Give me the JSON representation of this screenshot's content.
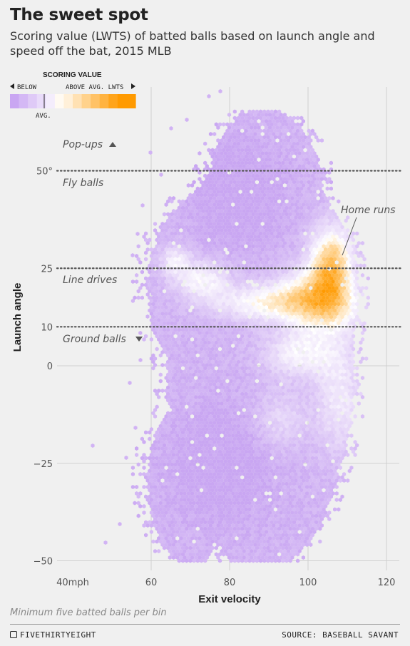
{
  "header": {
    "title": "The sweet spot",
    "subtitle": "Scoring value (LWTS) of batted balls based on launch angle and speed off the bat, 2015 MLB"
  },
  "legend": {
    "title": "SCORING VALUE",
    "below_label": "BELOW",
    "above_label": "ABOVE AVG. LWTS",
    "avg_label": "AVG.",
    "colors": {
      "below_far": "#c9a6f2",
      "average": "#ffffff",
      "above_far": "#ff9a00"
    }
  },
  "chart_data": {
    "type": "heatmap",
    "xlabel": "Exit velocity",
    "ylabel": "Launch angle",
    "xlim": [
      35,
      125
    ],
    "ylim": [
      -52,
      62
    ],
    "x_ticks": [
      {
        "value": 40,
        "label": "40mph"
      },
      {
        "value": 60,
        "label": "60"
      },
      {
        "value": 80,
        "label": "80"
      },
      {
        "value": 100,
        "label": "100"
      },
      {
        "value": 120,
        "label": "120"
      }
    ],
    "y_ticks": [
      {
        "value": 50,
        "label": "50°"
      },
      {
        "value": 25,
        "label": "25"
      },
      {
        "value": 10,
        "label": "10"
      },
      {
        "value": 0,
        "label": "0"
      },
      {
        "value": -25,
        "label": "−25"
      },
      {
        "value": -50,
        "label": "−50"
      }
    ],
    "reference_lines": [
      50,
      25,
      10
    ],
    "zone_labels": [
      {
        "text": "Pop-ups",
        "arrow": "up"
      },
      {
        "text": "Fly balls",
        "arrow": ""
      },
      {
        "text": "Line drives",
        "arrow": ""
      },
      {
        "text": "Ground balls",
        "arrow": "down"
      }
    ],
    "annotation": {
      "text": "Home runs",
      "x": 106,
      "y": 28
    },
    "regions": [
      {
        "name": "ground-balls-below",
        "x_range": [
          60,
          112
        ],
        "y_range": [
          -50,
          0
        ],
        "value": "below"
      },
      {
        "name": "fly-balls-below",
        "x_range": [
          70,
          100
        ],
        "y_range": [
          25,
          70
        ],
        "value": "below"
      },
      {
        "name": "line-drive-band",
        "x_range": [
          65,
          113
        ],
        "y_range": [
          10,
          25
        ],
        "value": "above"
      },
      {
        "name": "home-run-zone",
        "x_range": [
          100,
          113
        ],
        "y_range": [
          18,
          38
        ],
        "value": "far-above"
      }
    ]
  },
  "footer": {
    "note": "Minimum five batted balls per bin",
    "brand": "FIVETHIRTYEIGHT",
    "source": "SOURCE: BASEBALL SAVANT"
  }
}
